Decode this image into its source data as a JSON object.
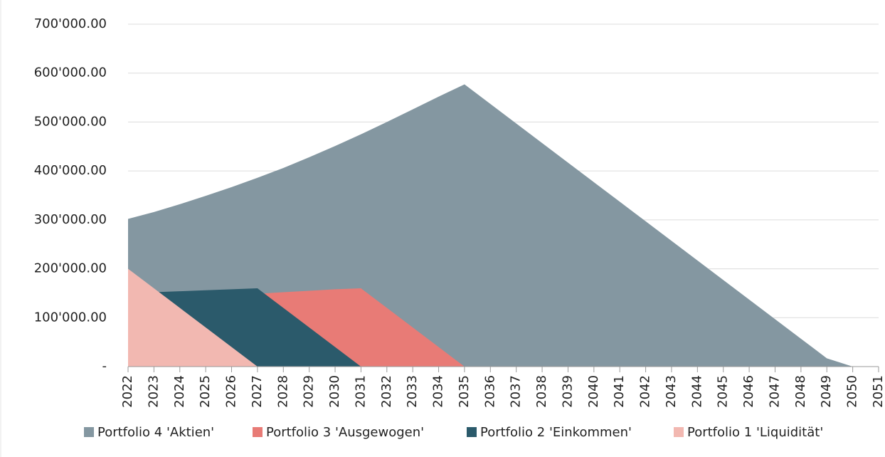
{
  "chart_data": {
    "type": "area",
    "categories": [
      "2022",
      "2023",
      "2024",
      "2025",
      "2026",
      "2027",
      "2028",
      "2029",
      "2030",
      "2031",
      "2032",
      "2033",
      "2034",
      "2035",
      "2036",
      "2037",
      "2038",
      "2039",
      "2040",
      "2041",
      "2042",
      "2043",
      "2044",
      "2045",
      "2046",
      "2047",
      "2048",
      "2049",
      "2050",
      "2051"
    ],
    "series": [
      {
        "name": "Portfolio 4 'Aktien'",
        "color": "#8497a1",
        "values": [
          302000,
          316000,
          332000,
          349000,
          367000,
          386000,
          406000,
          428000,
          451000,
          475000,
          500000,
          526000,
          552000,
          577000,
          537000,
          497000,
          457000,
          417000,
          377000,
          337000,
          297000,
          257000,
          217000,
          177000,
          137000,
          97000,
          57000,
          17000,
          0,
          null
        ]
      },
      {
        "name": "Portfolio 3 'Ausgewogen'",
        "color": "#e87b76",
        "values": [
          135000,
          138000,
          141000,
          144000,
          147000,
          149000,
          152000,
          155000,
          158000,
          160000,
          120000,
          80000,
          40000,
          0,
          null,
          null,
          null,
          null,
          null,
          null,
          null,
          null,
          null,
          null,
          null,
          null,
          null,
          null,
          null,
          null
        ]
      },
      {
        "name": "Portfolio 2 'Einkommen'",
        "color": "#2b5a6b",
        "values": [
          150000,
          152000,
          154000,
          156000,
          158000,
          160000,
          120000,
          80000,
          40000,
          0,
          null,
          null,
          null,
          null,
          null,
          null,
          null,
          null,
          null,
          null,
          null,
          null,
          null,
          null,
          null,
          null,
          null,
          null,
          null,
          null
        ]
      },
      {
        "name": "Portfolio 1 'Liquidität'",
        "color": "#f2b8b1",
        "values": [
          200000,
          160000,
          120000,
          80000,
          40000,
          0,
          null,
          null,
          null,
          null,
          null,
          null,
          null,
          null,
          null,
          null,
          null,
          null,
          null,
          null,
          null,
          null,
          null,
          null,
          null,
          null,
          null,
          null,
          null,
          null
        ]
      }
    ],
    "ylim": [
      0,
      700000
    ],
    "yticks": [
      {
        "value": 0,
        "label": "-"
      },
      {
        "value": 100000,
        "label": "100'000.00"
      },
      {
        "value": 200000,
        "label": "200'000.00"
      },
      {
        "value": 300000,
        "label": "300'000.00"
      },
      {
        "value": 400000,
        "label": "400'000.00"
      },
      {
        "value": 500000,
        "label": "500'000.00"
      },
      {
        "value": 600000,
        "label": "600'000.00"
      },
      {
        "value": 700000,
        "label": "700'000.00"
      }
    ],
    "grid": true
  }
}
